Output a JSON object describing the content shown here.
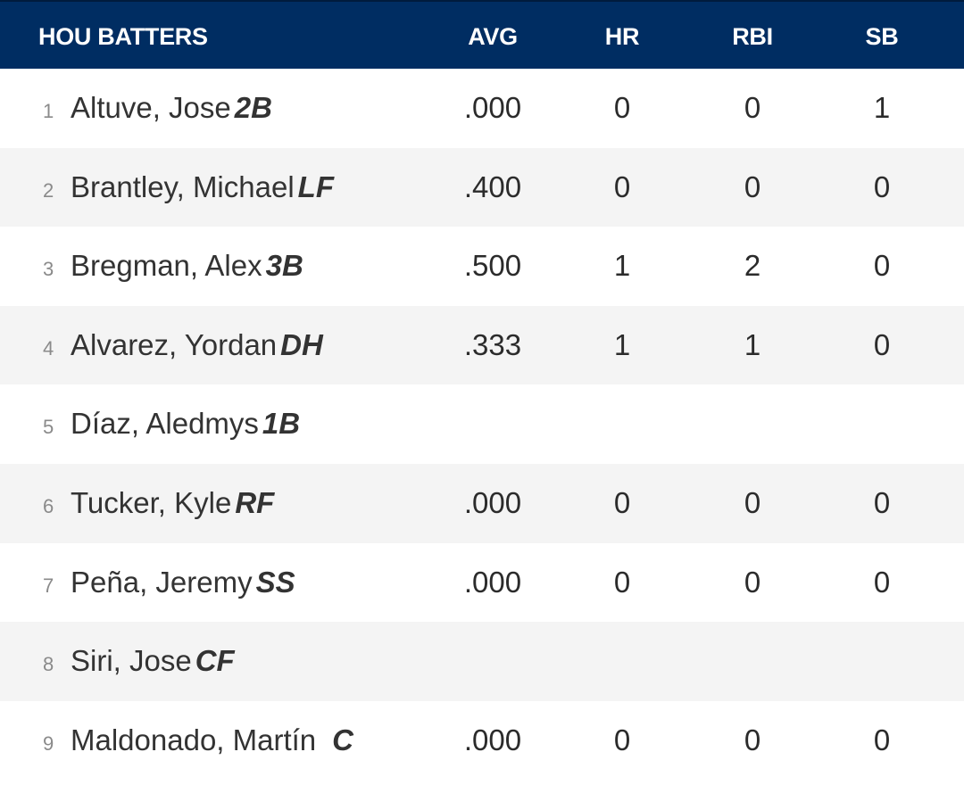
{
  "header": {
    "team_label": "HOU BATTERS",
    "avg": "AVG",
    "hr": "HR",
    "rbi": "RBI",
    "sb": "SB"
  },
  "colors": {
    "header_bg": "#002d62",
    "row_alt_bg": "#f4f4f4"
  },
  "batters": [
    {
      "order": "1",
      "name": "Altuve, Jose",
      "pos": "2B",
      "avg": ".000",
      "hr": "0",
      "rbi": "0",
      "sb": "1"
    },
    {
      "order": "2",
      "name": "Brantley, Michael",
      "pos": "LF",
      "avg": ".400",
      "hr": "0",
      "rbi": "0",
      "sb": "0"
    },
    {
      "order": "3",
      "name": "Bregman, Alex",
      "pos": "3B",
      "avg": ".500",
      "hr": "1",
      "rbi": "2",
      "sb": "0"
    },
    {
      "order": "4",
      "name": "Alvarez, Yordan",
      "pos": "DH",
      "avg": ".333",
      "hr": "1",
      "rbi": "1",
      "sb": "0"
    },
    {
      "order": "5",
      "name": "Díaz, Aledmys",
      "pos": "1B",
      "avg": "",
      "hr": "",
      "rbi": "",
      "sb": ""
    },
    {
      "order": "6",
      "name": "Tucker, Kyle",
      "pos": "RF",
      "avg": ".000",
      "hr": "0",
      "rbi": "0",
      "sb": "0"
    },
    {
      "order": "7",
      "name": "Peña, Jeremy",
      "pos": "SS",
      "avg": ".000",
      "hr": "0",
      "rbi": "0",
      "sb": "0"
    },
    {
      "order": "8",
      "name": "Siri, Jose",
      "pos": "CF",
      "avg": "",
      "hr": "",
      "rbi": "",
      "sb": ""
    },
    {
      "order": "9",
      "name": "Maldonado, Martín",
      "pos": "C",
      "avg": ".000",
      "hr": "0",
      "rbi": "0",
      "sb": "0"
    }
  ]
}
